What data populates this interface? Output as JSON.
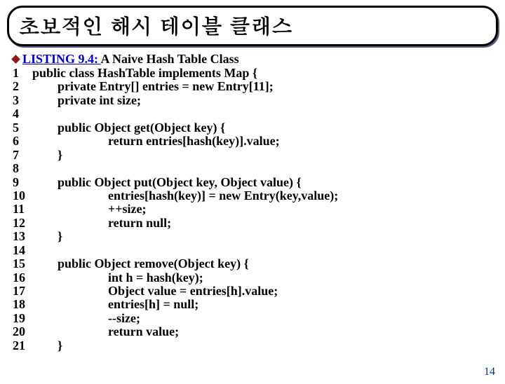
{
  "title": "초보적인 해시 테이블 클래스",
  "listing_label": "LISTING 9.4: ",
  "listing_title": "A Naive Hash Table Class",
  "bullet_color": "#8b1a1a",
  "link_color": "#0000cc",
  "code_lines": [
    {
      "n": "1",
      "t": "public class HashTable implements Map {",
      "i": 0
    },
    {
      "n": "2",
      "t": "private Entry[] entries = new Entry[11];",
      "i": 1
    },
    {
      "n": "3",
      "t": "private int size;",
      "i": 1
    },
    {
      "n": "4",
      "t": "",
      "i": 0
    },
    {
      "n": "5",
      "t": "public Object get(Object key) {",
      "i": 1
    },
    {
      "n": "6",
      "t": "return entries[hash(key)].value;",
      "i": 3
    },
    {
      "n": "7",
      "t": "}",
      "i": 1
    },
    {
      "n": "8",
      "t": "",
      "i": 0
    },
    {
      "n": "9",
      "t": "public Object put(Object key, Object value) {",
      "i": 1
    },
    {
      "n": "10",
      "t": "entries[hash(key)] = new Entry(key,value);",
      "i": 3
    },
    {
      "n": "11",
      "t": "++size;",
      "i": 3
    },
    {
      "n": "12",
      "t": "return null;",
      "i": 3
    },
    {
      "n": "13",
      "t": "}",
      "i": 1
    },
    {
      "n": "14",
      "t": "",
      "i": 0
    },
    {
      "n": "15",
      "t": "public Object remove(Object key) {",
      "i": 1
    },
    {
      "n": "16",
      "t": "int h = hash(key);",
      "i": 3
    },
    {
      "n": "17",
      "t": "Object value = entries[h].value;",
      "i": 3
    },
    {
      "n": "18",
      "t": "entries[h] = null;",
      "i": 3
    },
    {
      "n": "19",
      "t": "--size;",
      "i": 3
    },
    {
      "n": "20",
      "t": "return value;",
      "i": 3
    },
    {
      "n": "21",
      "t": "}",
      "i": 1
    }
  ],
  "indent_unit": "        ",
  "page_number": "14",
  "page_number_color": "#003399"
}
